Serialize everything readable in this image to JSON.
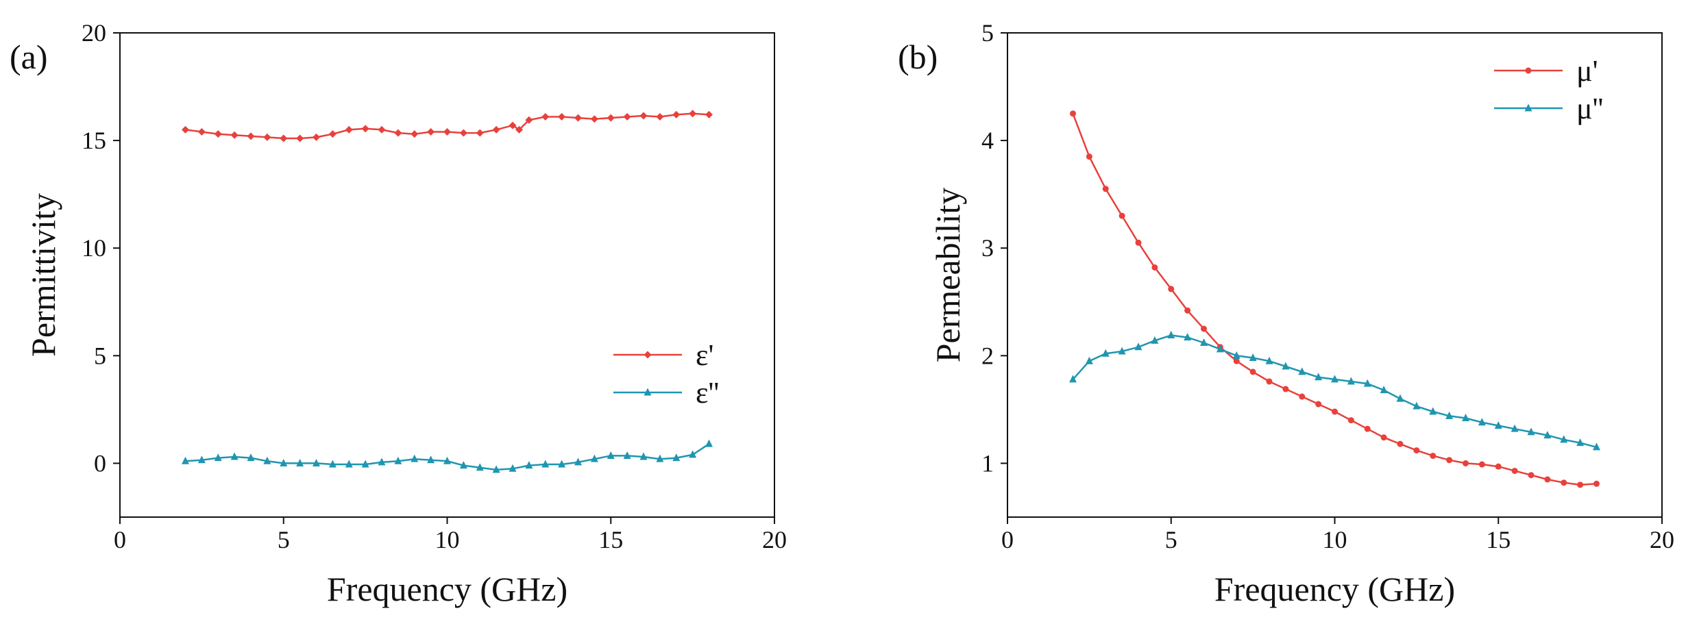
{
  "chart_data": [
    {
      "type": "line",
      "panel_label": "(a)",
      "xlabel": "Frequency (GHz)",
      "ylabel": "Permittivity",
      "xlim": [
        0,
        20
      ],
      "ylim": [
        -2.5,
        20
      ],
      "xticks": [
        0,
        5,
        10,
        15,
        20
      ],
      "yticks": [
        0,
        5,
        10,
        15,
        20
      ],
      "grid": false,
      "legend_position": "center-right",
      "series": [
        {
          "name": "ε'",
          "color": "#e8413c",
          "marker": "diamond",
          "x": [
            2.0,
            2.5,
            3.0,
            3.5,
            4.0,
            4.5,
            5.0,
            5.5,
            6.0,
            6.5,
            7.0,
            7.5,
            8.0,
            8.5,
            9.0,
            9.5,
            10.0,
            10.5,
            11.0,
            11.5,
            12.0,
            12.2,
            12.5,
            13.0,
            13.5,
            14.0,
            14.5,
            15.0,
            15.5,
            16.0,
            16.5,
            17.0,
            17.5,
            18.0
          ],
          "y": [
            15.5,
            15.4,
            15.3,
            15.25,
            15.2,
            15.15,
            15.1,
            15.1,
            15.15,
            15.3,
            15.5,
            15.55,
            15.5,
            15.35,
            15.3,
            15.4,
            15.4,
            15.35,
            15.35,
            15.5,
            15.7,
            15.5,
            15.95,
            16.1,
            16.1,
            16.05,
            16.0,
            16.05,
            16.1,
            16.15,
            16.1,
            16.2,
            16.25,
            16.2
          ]
        },
        {
          "name": "ε''",
          "color": "#1f96b0",
          "marker": "triangle",
          "x": [
            2.0,
            2.5,
            3.0,
            3.5,
            4.0,
            4.5,
            5.0,
            5.5,
            6.0,
            6.5,
            7.0,
            7.5,
            8.0,
            8.5,
            9.0,
            9.5,
            10.0,
            10.5,
            11.0,
            11.5,
            12.0,
            12.5,
            13.0,
            13.5,
            14.0,
            14.5,
            15.0,
            15.5,
            16.0,
            16.5,
            17.0,
            17.5,
            18.0
          ],
          "y": [
            0.1,
            0.15,
            0.25,
            0.3,
            0.25,
            0.1,
            0.0,
            0.0,
            0.0,
            -0.05,
            -0.05,
            -0.05,
            0.05,
            0.1,
            0.2,
            0.15,
            0.1,
            -0.1,
            -0.2,
            -0.3,
            -0.25,
            -0.1,
            -0.05,
            -0.05,
            0.05,
            0.2,
            0.35,
            0.35,
            0.3,
            0.2,
            0.25,
            0.4,
            0.9
          ]
        }
      ]
    },
    {
      "type": "line",
      "panel_label": "(b)",
      "xlabel": "Frequency (GHz)",
      "ylabel": "Permeability",
      "xlim": [
        0,
        20
      ],
      "ylim": [
        0.5,
        5
      ],
      "xticks": [
        0,
        5,
        10,
        15,
        20
      ],
      "yticks": [
        1,
        2,
        3,
        4,
        5
      ],
      "grid": false,
      "legend_position": "top-right",
      "series": [
        {
          "name": "μ'",
          "color": "#e8413c",
          "marker": "circle",
          "x": [
            2.0,
            2.5,
            3.0,
            3.5,
            4.0,
            4.5,
            5.0,
            5.5,
            6.0,
            6.5,
            7.0,
            7.5,
            8.0,
            8.5,
            9.0,
            9.5,
            10.0,
            10.5,
            11.0,
            11.5,
            12.0,
            12.5,
            13.0,
            13.5,
            14.0,
            14.5,
            15.0,
            15.5,
            16.0,
            16.5,
            17.0,
            17.5,
            18.0
          ],
          "y": [
            4.25,
            3.85,
            3.55,
            3.3,
            3.05,
            2.82,
            2.62,
            2.42,
            2.25,
            2.08,
            1.95,
            1.85,
            1.76,
            1.69,
            1.62,
            1.55,
            1.48,
            1.4,
            1.32,
            1.24,
            1.18,
            1.12,
            1.07,
            1.03,
            1.0,
            0.99,
            0.97,
            0.93,
            0.89,
            0.85,
            0.82,
            0.8,
            0.81
          ]
        },
        {
          "name": "μ''",
          "color": "#1f96b0",
          "marker": "triangle",
          "x": [
            2.0,
            2.5,
            3.0,
            3.5,
            4.0,
            4.5,
            5.0,
            5.5,
            6.0,
            6.5,
            7.0,
            7.5,
            8.0,
            8.5,
            9.0,
            9.5,
            10.0,
            10.5,
            11.0,
            11.5,
            12.0,
            12.5,
            13.0,
            13.5,
            14.0,
            14.5,
            15.0,
            15.5,
            16.0,
            16.5,
            17.0,
            17.5,
            18.0
          ],
          "y": [
            1.78,
            1.95,
            2.02,
            2.04,
            2.08,
            2.14,
            2.19,
            2.17,
            2.12,
            2.06,
            2.0,
            1.98,
            1.95,
            1.9,
            1.85,
            1.8,
            1.78,
            1.76,
            1.74,
            1.68,
            1.6,
            1.53,
            1.48,
            1.44,
            1.42,
            1.38,
            1.35,
            1.32,
            1.29,
            1.26,
            1.22,
            1.19,
            1.15
          ]
        }
      ]
    }
  ]
}
